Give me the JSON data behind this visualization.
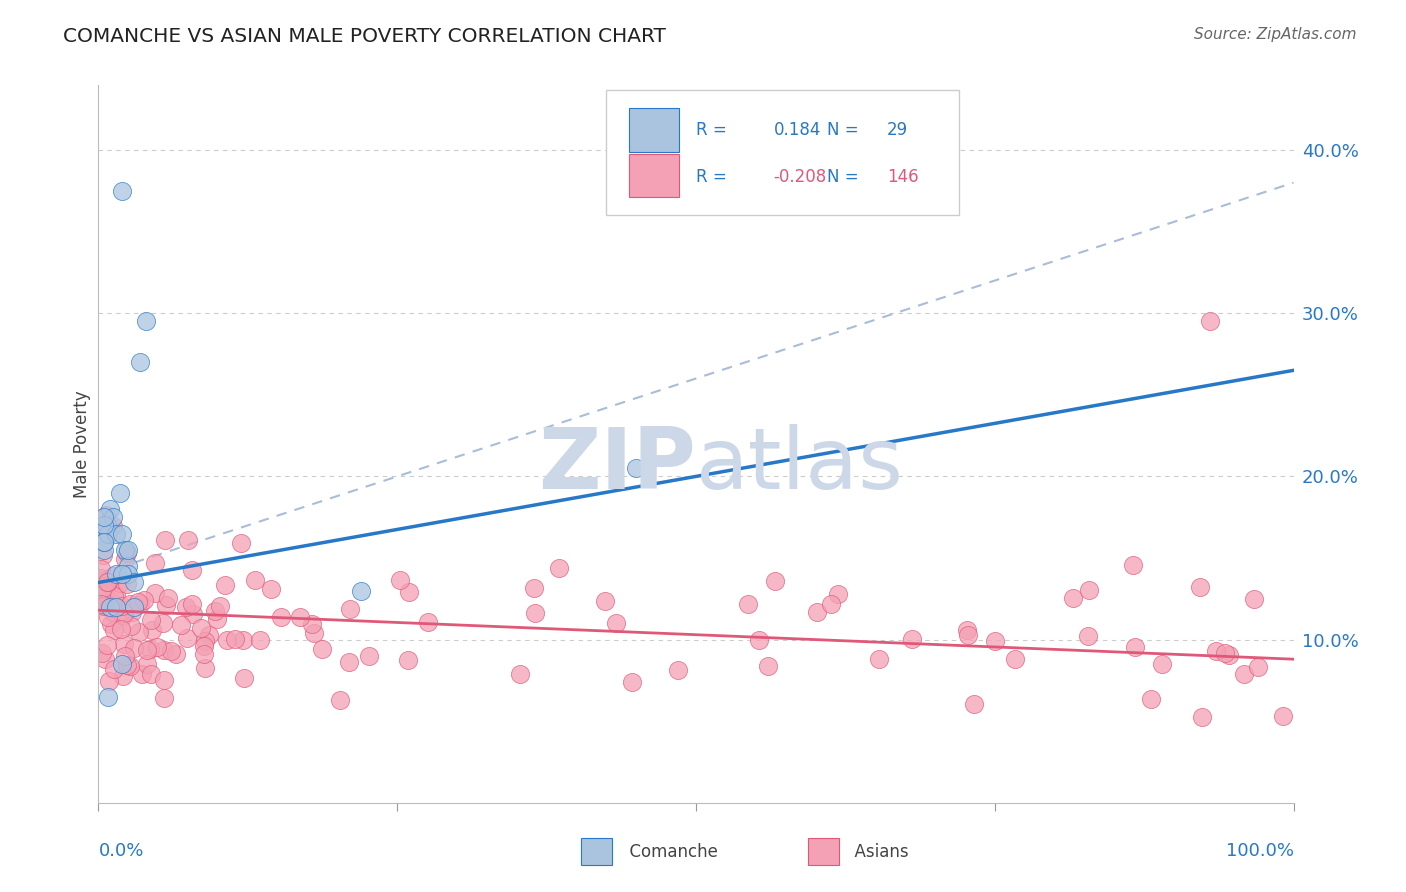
{
  "title": "COMANCHE VS ASIAN MALE POVERTY CORRELATION CHART",
  "source": "Source: ZipAtlas.com",
  "ylabel": "Male Poverty",
  "right_yticks": [
    "10.0%",
    "20.0%",
    "30.0%",
    "40.0%"
  ],
  "right_ytick_vals": [
    0.1,
    0.2,
    0.3,
    0.4
  ],
  "comanche_R": 0.184,
  "comanche_N": 29,
  "asian_R": -0.208,
  "asian_N": 146,
  "comanche_color": "#aac4e0",
  "asian_color": "#f4a0b5",
  "comanche_line_color": "#2878c8",
  "asian_line_color": "#e05878",
  "dashed_line_color": "#aabdd8",
  "legend_blue_text": "#2878c8",
  "legend_pink_text": "#e05878",
  "xlim": [
    0.0,
    1.0
  ],
  "ylim": [
    0.0,
    0.44
  ],
  "background_color": "#ffffff",
  "grid_color": "#cccccc",
  "watermark_color": "#ccd8e8",
  "comanche_line_x0": 0.0,
  "comanche_line_y0": 0.135,
  "comanche_line_x1": 1.0,
  "comanche_line_y1": 0.265,
  "asian_line_x0": 0.0,
  "asian_line_y0": 0.118,
  "asian_line_x1": 1.0,
  "asian_line_y1": 0.088,
  "dashed_line_x0": 0.0,
  "dashed_line_y0": 0.14,
  "dashed_line_x1": 1.0,
  "dashed_line_y1": 0.38
}
